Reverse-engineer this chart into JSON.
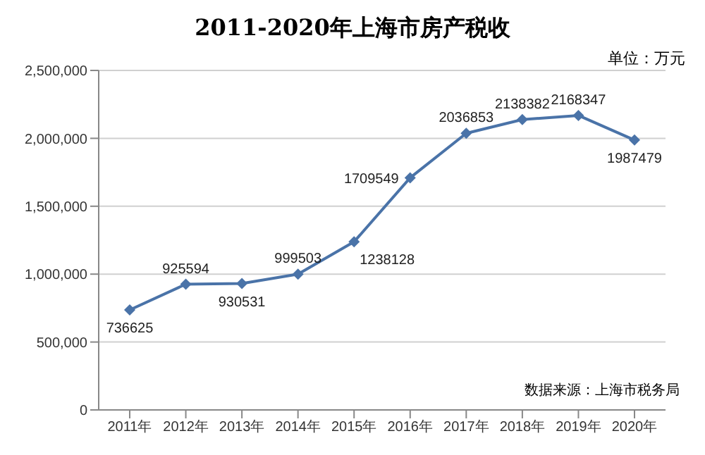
{
  "chart_data": {
    "type": "line",
    "title": "2011-2020年上海市房产税收",
    "categories": [
      "2011年",
      "2012年",
      "2013年",
      "2014年",
      "2015年",
      "2016年",
      "2017年",
      "2018年",
      "2019年",
      "2020年"
    ],
    "series": [
      {
        "color": "#4a73a8",
        "values": [
          736625,
          925594,
          930531,
          999503,
          1238128,
          1709549,
          2036853,
          2138382,
          2168347,
          1987479
        ]
      }
    ],
    "ylim": [
      0,
      2500000
    ],
    "yticks": [
      {
        "value": 0,
        "label": "0"
      },
      {
        "value": 500000,
        "label": "500,000"
      },
      {
        "value": 1000000,
        "label": "1,000,000"
      },
      {
        "value": 1500000,
        "label": "1,500,000"
      },
      {
        "value": 2000000,
        "label": "2,000,000"
      },
      {
        "value": 2500000,
        "label": "2,500,000"
      }
    ],
    "grid": "y",
    "marker": "diamond",
    "line_style": "solid",
    "data_labels": true,
    "annotations": [
      "单位：万元",
      "数据来源：上海市税务局"
    ]
  }
}
